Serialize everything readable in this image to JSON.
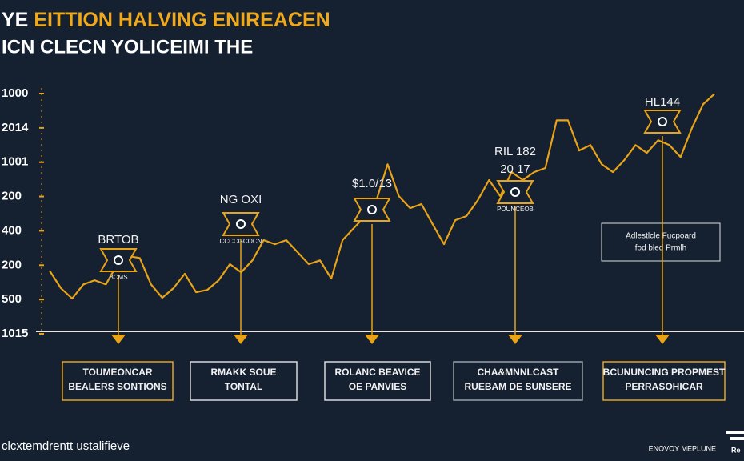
{
  "chart_data": {
    "type": "line",
    "title_parts": [
      "YE",
      "EITTION HALVING ENIREACEN"
    ],
    "subtitle": "ICN CLECN YOLICEIMI THE",
    "color": "#e8a317",
    "title_color": "#f0a81c",
    "ylim": [
      0,
      7
    ],
    "yticks": [
      {
        "value": 0,
        "label": "1015"
      },
      {
        "value": 1,
        "label": "500"
      },
      {
        "value": 2,
        "label": "200"
      },
      {
        "value": 3,
        "label": "400"
      },
      {
        "value": 4,
        "label": "200"
      },
      {
        "value": 5,
        "label": "1001"
      },
      {
        "value": 6,
        "label": "2014"
      },
      {
        "value": 7,
        "label": "1000"
      }
    ],
    "values": [
      1.84,
      1.33,
      1.03,
      1.44,
      1.56,
      1.44,
      2.03,
      2.26,
      2.21,
      1.44,
      1.05,
      1.33,
      1.75,
      1.21,
      1.28,
      1.56,
      2.03,
      1.79,
      2.14,
      2.73,
      2.61,
      2.73,
      2.38,
      2.03,
      2.14,
      1.61,
      2.73,
      3.08,
      3.43,
      3.89,
      4.94,
      4.01,
      3.66,
      3.78,
      3.19,
      2.61,
      3.31,
      3.43,
      3.89,
      4.48,
      4.01,
      4.71,
      4.48,
      4.71,
      4.83,
      6.22,
      6.22,
      5.34,
      5.5,
      4.94,
      4.71,
      5.06,
      5.5,
      5.27,
      5.64,
      5.5,
      5.15,
      5.99,
      6.69,
      6.99
    ],
    "annotations": [
      {
        "label": [
          "BRTOB"
        ],
        "icon_label": "BCMS",
        "box": [
          "TOUMEONCAR",
          "BEALERS SONTIONS"
        ]
      },
      {
        "label": [
          "NG OXI"
        ],
        "icon_label": "CCCCGCOCN",
        "box": [
          "RMAKK SOUE",
          "TONTAL"
        ]
      },
      {
        "label": [
          "$1.0/13"
        ],
        "icon_label": "",
        "box": [
          "ROLANC BEAVICE",
          "OE PANVIES"
        ]
      },
      {
        "label": [
          "RIL 182",
          "20 17"
        ],
        "icon_label": "POUNCEOB",
        "box": [
          "CHA&MNNLCAST",
          "RUEBAM DE SUNSERE"
        ]
      },
      {
        "label": [
          "HL144"
        ],
        "icon_label": "",
        "box": [
          "BCUNUNCING PROPMEST",
          "PERRASOHICAR"
        ]
      }
    ],
    "note": [
      "Adlestlcle Fucpoard",
      "fod bled Prmlh"
    ],
    "footer_left": "clcxtemdrentt ustalifieve",
    "footer_right": "ENOVOY MEPLUNE",
    "logo": "Re"
  }
}
